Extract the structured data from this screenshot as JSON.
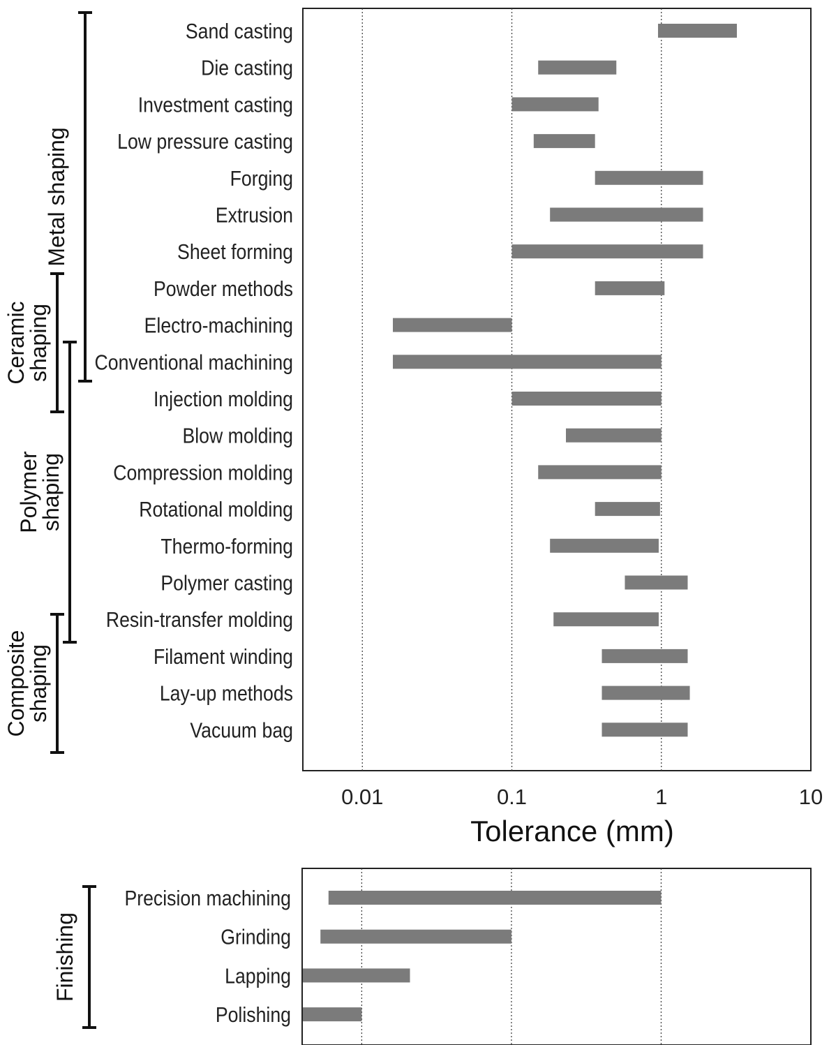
{
  "chart_data": [
    {
      "type": "bar",
      "orientation": "horizontal-range",
      "xscale": "log",
      "xlim": [
        0.004,
        10
      ],
      "xticks": [
        "0.01",
        "0.1",
        "1",
        "10"
      ],
      "xtick_values": [
        0.01,
        0.1,
        1,
        10
      ],
      "xlabel": "Tolerance (mm)",
      "grid": "vertical-dotted",
      "bar_color": "#7b7b7b",
      "categories": [
        "Sand casting",
        "Die casting",
        "Investment casting",
        "Low pressure casting",
        "Forging",
        "Extrusion",
        "Sheet forming",
        "Powder methods",
        "Electro-machining",
        "Conventional machining",
        "Injection molding",
        "Blow molding",
        "Compression molding",
        "Rotational molding",
        "Thermo-forming",
        "Polymer casting",
        "Resin-transfer molding",
        "Filament winding",
        "Lay-up methods",
        "Vacuum bag"
      ],
      "ranges": [
        [
          0.95,
          3.2
        ],
        [
          0.15,
          0.5
        ],
        [
          0.1,
          0.38
        ],
        [
          0.14,
          0.36
        ],
        [
          0.36,
          1.9
        ],
        [
          0.18,
          1.9
        ],
        [
          0.1,
          1.9
        ],
        [
          0.36,
          1.05
        ],
        [
          0.016,
          0.1
        ],
        [
          0.016,
          1.0
        ],
        [
          0.1,
          1.0
        ],
        [
          0.23,
          1.0
        ],
        [
          0.15,
          1.0
        ],
        [
          0.36,
          0.98
        ],
        [
          0.18,
          0.96
        ],
        [
          0.57,
          1.5
        ],
        [
          0.19,
          0.96
        ],
        [
          0.4,
          1.5
        ],
        [
          0.4,
          1.55
        ],
        [
          0.4,
          1.5
        ]
      ],
      "groups": [
        {
          "label": "Metal shaping",
          "from": "Sand casting",
          "to": "Conventional machining"
        },
        {
          "label": [
            "Ceramic",
            "shaping"
          ],
          "from": "Powder methods",
          "to": "Injection molding"
        },
        {
          "label": [
            "Polymer",
            "shaping"
          ],
          "from": "Electro-machining",
          "to": "Resin-transfer molding"
        },
        {
          "label": [
            "Composite",
            "shaping"
          ],
          "from": "Resin-transfer molding",
          "to": "Vacuum bag"
        }
      ]
    },
    {
      "type": "bar",
      "orientation": "horizontal-range",
      "xscale": "log",
      "xlim": [
        0.004,
        10
      ],
      "grid": "vertical-dotted",
      "bar_color": "#7b7b7b",
      "categories": [
        "Precision machining",
        "Grinding",
        "Lapping",
        "Polishing"
      ],
      "ranges": [
        [
          0.006,
          1.0
        ],
        [
          0.0053,
          0.1
        ],
        [
          0.0039,
          0.021
        ],
        [
          0.0029,
          0.01
        ]
      ],
      "groups": [
        {
          "label": "Finishing",
          "from": "Precision machining",
          "to": "Polishing"
        }
      ]
    }
  ]
}
